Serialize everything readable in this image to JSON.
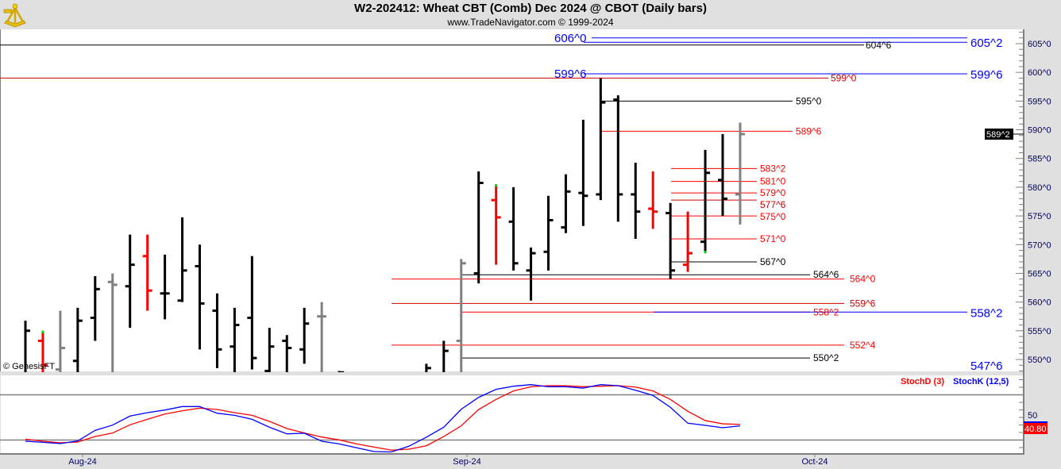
{
  "header": {
    "title": "W2-202412:  Wheat CBT (Comb) Dec 2024 @ CBOT  (Daily bars)",
    "subtitle": "www.TradeNavigator.com © 1999-2024",
    "logo": "sextant-icon"
  },
  "copyright": "© GenesisFT",
  "chart_data": [
    {
      "type": "ohlc",
      "title": "W2-202412:  Wheat CBT (Comb) Dec 2024 @ CBOT  (Daily bars)",
      "ylim": [
        547.5,
        607
      ],
      "y_ticks": [
        "605^0",
        "600^0",
        "595^0",
        "590^0",
        "585^0",
        "580^0",
        "575^0",
        "570^0",
        "565^0",
        "560^0",
        "555^0",
        "550^0"
      ],
      "y_tick_values": [
        605,
        600,
        595,
        590,
        585,
        580,
        575,
        570,
        565,
        560,
        555,
        550
      ],
      "x_ticks": [
        "Aug-24",
        "Sep-24",
        "Oct-24"
      ],
      "last_price_label": "589^2",
      "last_price": 589.25,
      "colors": {
        "black": "#000000",
        "red": "#ff0000",
        "gray": "#808080",
        "marker": "#00e000"
      },
      "bars": [
        {
          "o": null,
          "h": 556.75,
          "l": null,
          "c": 555,
          "color": "black"
        },
        {
          "o": 553.25,
          "h": 555,
          "l": null,
          "c": 549,
          "color": "red",
          "marker": "high"
        },
        {
          "o": 548.25,
          "h": 558.5,
          "l": null,
          "c": 552,
          "color": "gray"
        },
        {
          "o": 549.75,
          "h": 559,
          "l": null,
          "c": 556.75,
          "color": "black"
        },
        {
          "o": 557.25,
          "h": 564.5,
          "l": 553.25,
          "c": 562.25,
          "color": "black"
        },
        {
          "o": 563.5,
          "h": 565,
          "l": null,
          "c": 563,
          "color": "gray"
        },
        {
          "o": 562.75,
          "h": 571.75,
          "l": 555.5,
          "c": 566.5,
          "color": "black"
        },
        {
          "o": 568,
          "h": 571.75,
          "l": 558.5,
          "c": 562,
          "color": "red"
        },
        {
          "o": 561.5,
          "h": 568.25,
          "l": 557,
          "c": 561.5,
          "color": "black"
        },
        {
          "o": 560.25,
          "h": 574.75,
          "l": 560,
          "c": 565.5,
          "color": "black"
        },
        {
          "o": 566.25,
          "h": 570,
          "l": 551.75,
          "c": 559.75,
          "color": "black"
        },
        {
          "o": 558.5,
          "h": 561.5,
          "l": 548.5,
          "c": 551.75,
          "color": "black"
        },
        {
          "o": 552.25,
          "h": 559,
          "l": null,
          "c": 556,
          "color": "black"
        },
        {
          "o": 557.25,
          "h": 568,
          "l": 548.25,
          "c": 550.25,
          "color": "black"
        },
        {
          "o": 548,
          "h": 555.5,
          "l": null,
          "c": 552.25,
          "color": "black"
        },
        {
          "o": 553.25,
          "h": 554.25,
          "l": null,
          "c": 552,
          "color": "black"
        },
        {
          "o": 551.75,
          "h": 559,
          "l": 549.25,
          "c": 556.25,
          "color": "black"
        },
        {
          "o": 557.5,
          "h": 560,
          "l": null,
          "c": 557.5,
          "color": "gray"
        },
        {
          "o": null,
          "h": 548,
          "l": null,
          "c": 547.75,
          "color": "black"
        },
        null,
        null,
        null,
        null,
        {
          "o": null,
          "h": 549.25,
          "l": null,
          "c": 548.5,
          "color": "black"
        },
        {
          "o": null,
          "h": 553.25,
          "l": null,
          "c": 551.5,
          "color": "black"
        },
        {
          "o": 553.25,
          "h": 567.5,
          "l": null,
          "c": 566.75,
          "color": "gray"
        },
        {
          "o": 565,
          "h": 582.75,
          "l": 563.25,
          "c": 580.75,
          "color": "black"
        },
        {
          "o": 577.75,
          "h": 580.5,
          "l": 566.5,
          "c": 574.75,
          "color": "red",
          "marker": "high"
        },
        {
          "o": 574,
          "h": 580,
          "l": 565.5,
          "c": 566.75,
          "color": "black"
        },
        {
          "o": 565.5,
          "h": 569.5,
          "l": 560.25,
          "c": 568.5,
          "color": "black"
        },
        {
          "o": 568.75,
          "h": 578.5,
          "l": 565.5,
          "c": 574.25,
          "color": "black"
        },
        {
          "o": 573,
          "h": 582.25,
          "l": 572,
          "c": 579.25,
          "color": "black"
        },
        {
          "o": 579,
          "h": 591.75,
          "l": 573.25,
          "c": 578.5,
          "color": "black"
        },
        {
          "o": 578.75,
          "h": 599,
          "l": 577.75,
          "c": 594.75,
          "color": "black"
        },
        {
          "o": 595.25,
          "h": 596,
          "l": 574,
          "c": 578.75,
          "color": "black"
        },
        {
          "o": 578.75,
          "h": 584.25,
          "l": 571,
          "c": 575.75,
          "color": "black"
        },
        {
          "o": 576.25,
          "h": 582.75,
          "l": 572.75,
          "c": 575.75,
          "color": "red"
        },
        {
          "o": 575.5,
          "h": 577.25,
          "l": 564,
          "c": 565.5,
          "color": "black"
        },
        {
          "o": 566.5,
          "h": 575.75,
          "l": 565.25,
          "c": 568.5,
          "color": "red"
        },
        {
          "o": 570.5,
          "h": 586.5,
          "l": 568.5,
          "c": 582.5,
          "color": "black",
          "marker": "low"
        },
        {
          "o": 581.25,
          "h": 589.25,
          "l": 575,
          "c": 578,
          "color": "black"
        },
        {
          "o": 578.75,
          "h": 591.25,
          "l": 573.5,
          "c": 589.25,
          "color": "gray"
        }
      ],
      "levels": [
        {
          "price": 606.0,
          "label_left": "606^0",
          "color": "#0000ff"
        },
        {
          "price": 605.25,
          "label": "605^2",
          "color": "#0000ff"
        },
        {
          "price": 604.75,
          "label": "604^6",
          "color": "#000000"
        },
        {
          "price": 599.75,
          "label_left": "599^6",
          "label": "599^6",
          "color": "#0000ff"
        },
        {
          "price": 599.0,
          "label": "599^0",
          "color": "#cc0000"
        },
        {
          "price": 595.0,
          "label": "595^0",
          "color": "#000000"
        },
        {
          "price": 589.75,
          "label": "589^6",
          "color": "#ff0000"
        },
        {
          "price": 583.25,
          "label": "583^2",
          "color": "#ff0000"
        },
        {
          "price": 581.0,
          "label": "581^0",
          "color": "#ff0000"
        },
        {
          "price": 579.0,
          "label": "579^0",
          "color": "#ff0000"
        },
        {
          "price": 577.75,
          "label": "577^6",
          "color": "#cc0000"
        },
        {
          "price": 575.0,
          "label": "575^0",
          "color": "#ff0000"
        },
        {
          "price": 571.0,
          "label": "571^0",
          "color": "#ff0000"
        },
        {
          "price": 567.0,
          "label": "567^0",
          "color": "#000000"
        },
        {
          "price": 564.75,
          "label": "564^6",
          "color": "#000000"
        },
        {
          "price": 564.0,
          "label": "564^0",
          "color": "#ff0000"
        },
        {
          "price": 559.75,
          "label": "559^6",
          "color": "#cc0000"
        },
        {
          "price": 558.25,
          "label": "558^2",
          "color": "#ff0000"
        },
        {
          "price": 558.25,
          "label": "558^2",
          "color": "#0000ff"
        },
        {
          "price": 552.5,
          "label": "552^4",
          "color": "#ff0000"
        },
        {
          "price": 550.25,
          "label": "550^2",
          "color": "#000000"
        },
        {
          "price": 547.75,
          "label": "547^6",
          "color": "#0000ff"
        }
      ]
    },
    {
      "type": "line",
      "ylim": [
        0,
        100
      ],
      "y_ticks": [
        "50"
      ],
      "reference_lines": [
        80,
        20
      ],
      "legend_position": "top-right",
      "last_value_label": "40.80",
      "series": [
        {
          "name": "StochD (3)",
          "color": "#ff0000",
          "values": [
            21.2,
            18.4,
            16.3,
            17.4,
            24.7,
            29.3,
            40.2,
            47.5,
            54.5,
            58.8,
            62.3,
            60.5,
            56.3,
            52.8,
            44.7,
            35.3,
            29.3,
            24,
            20.2,
            14.9,
            10.7,
            6.6,
            7.9,
            12.4,
            24.7,
            38.8,
            60.5,
            73.9,
            85.1,
            90.7,
            92.1,
            92.1,
            90.7,
            91.4,
            92.1,
            90.3,
            85.1,
            73.9,
            58.1,
            45.8,
            41.5,
            40.8
          ]
        },
        {
          "name": "StochK (12,5)",
          "color": "#0000ff",
          "values": [
            18.4,
            17,
            15.3,
            18.8,
            32.8,
            39.8,
            51.8,
            56.3,
            59.8,
            64.4,
            64.4,
            55.6,
            52.8,
            47.5,
            37,
            28.2,
            29,
            18.4,
            14.9,
            9.7,
            4.7,
            4.2,
            11.8,
            23.7,
            37,
            60.8,
            76.6,
            87.2,
            91.4,
            93.5,
            90.7,
            90.7,
            88.9,
            93.5,
            92.1,
            86.1,
            79.2,
            63.4,
            42.3,
            39.5,
            36.3,
            38.8
          ]
        }
      ]
    }
  ]
}
